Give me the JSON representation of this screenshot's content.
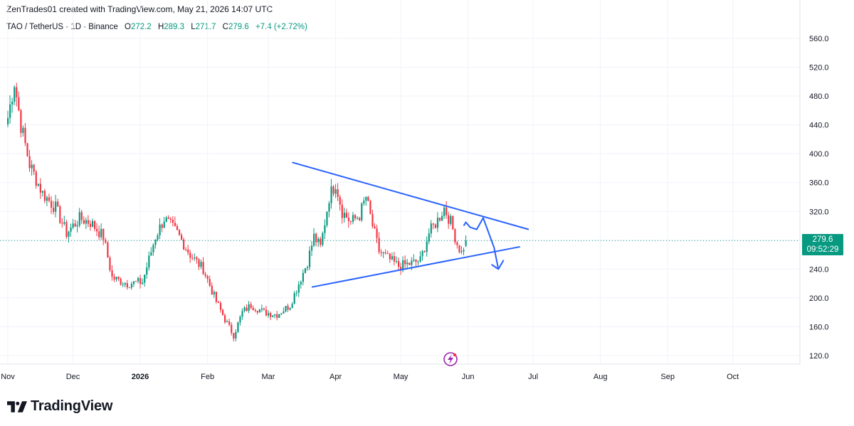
{
  "header": {
    "text": "ZenTrades01 created with TradingView.com, May 21, 2026 14:07 UTC"
  },
  "legend": {
    "symbol": "TAO / TetherUS · 1D · Binance",
    "o_label": "O",
    "o_value": "272.2",
    "h_label": "H",
    "h_value": "289.3",
    "l_label": "L",
    "l_value": "271.7",
    "c_label": "C",
    "c_value": "279.6",
    "change": "+7.4 (+2.72%)"
  },
  "price_tag": {
    "price": "279.6",
    "countdown": "09:52:29"
  },
  "logo": {
    "text": "TradingView"
  },
  "colors": {
    "up": "#089981",
    "down": "#f23645",
    "trendline": "#2962ff",
    "grid": "#f0f3fa"
  },
  "chart_data": {
    "type": "candlestick",
    "title": "",
    "y_ticks": [
      "560.0",
      "520.0",
      "480.0",
      "440.0",
      "400.0",
      "360.0",
      "320.0",
      "280.0",
      "240.0",
      "200.0",
      "160.0",
      "120.0"
    ],
    "x_ticks": [
      "Nov",
      "Dec",
      "2026",
      "Feb",
      "Mar",
      "Apr",
      "May",
      "Jun",
      "Jul",
      "Aug",
      "Sep",
      "Oct"
    ],
    "ylim": [
      100,
      575
    ],
    "grid": true,
    "last_price": 279.6,
    "ohlc_keypoints": [
      {
        "t": 0,
        "close": 450
      },
      {
        "t": 3,
        "close": 500
      },
      {
        "t": 6,
        "close": 440
      },
      {
        "t": 10,
        "close": 385
      },
      {
        "t": 16,
        "close": 345
      },
      {
        "t": 22,
        "close": 325
      },
      {
        "t": 27,
        "close": 290
      },
      {
        "t": 33,
        "close": 310
      },
      {
        "t": 38,
        "close": 305
      },
      {
        "t": 44,
        "close": 285
      },
      {
        "t": 48,
        "close": 228
      },
      {
        "t": 55,
        "close": 220
      },
      {
        "t": 62,
        "close": 222
      },
      {
        "t": 68,
        "close": 285
      },
      {
        "t": 72,
        "close": 310
      },
      {
        "t": 78,
        "close": 290
      },
      {
        "t": 84,
        "close": 260
      },
      {
        "t": 90,
        "close": 240
      },
      {
        "t": 96,
        "close": 195
      },
      {
        "t": 100,
        "close": 170
      },
      {
        "t": 104,
        "close": 148
      },
      {
        "t": 108,
        "close": 180
      },
      {
        "t": 112,
        "close": 190
      },
      {
        "t": 118,
        "close": 180
      },
      {
        "t": 124,
        "close": 177
      },
      {
        "t": 130,
        "close": 190
      },
      {
        "t": 134,
        "close": 220
      },
      {
        "t": 138,
        "close": 250
      },
      {
        "t": 141,
        "close": 285
      },
      {
        "t": 144,
        "close": 270
      },
      {
        "t": 148,
        "close": 340
      },
      {
        "t": 151,
        "close": 360
      },
      {
        "t": 154,
        "close": 320
      },
      {
        "t": 158,
        "close": 305
      },
      {
        "t": 162,
        "close": 315
      },
      {
        "t": 165,
        "close": 340
      },
      {
        "t": 168,
        "close": 300
      },
      {
        "t": 171,
        "close": 265
      },
      {
        "t": 175,
        "close": 255
      },
      {
        "t": 180,
        "close": 244
      },
      {
        "t": 186,
        "close": 248
      },
      {
        "t": 190,
        "close": 252
      },
      {
        "t": 194,
        "close": 290
      },
      {
        "t": 198,
        "close": 308
      },
      {
        "t": 201,
        "close": 325
      },
      {
        "t": 204,
        "close": 305
      },
      {
        "t": 207,
        "close": 275
      },
      {
        "t": 209,
        "close": 262
      },
      {
        "t": 211,
        "close": 279.6
      }
    ],
    "annotations": {
      "upper_trendline": [
        {
          "t": 131,
          "price": 388
        },
        {
          "t": 240,
          "price": 295
        }
      ],
      "lower_trendline": [
        {
          "t": 140,
          "price": 215
        },
        {
          "t": 236,
          "price": 271
        }
      ],
      "projection_path": [
        {
          "t": 210,
          "price": 300
        },
        {
          "t": 211,
          "price": 305
        },
        {
          "t": 213,
          "price": 298
        },
        {
          "t": 216,
          "price": 295
        },
        {
          "t": 219,
          "price": 311
        },
        {
          "t": 224,
          "price": 270
        },
        {
          "t": 226,
          "price": 240
        }
      ]
    }
  }
}
